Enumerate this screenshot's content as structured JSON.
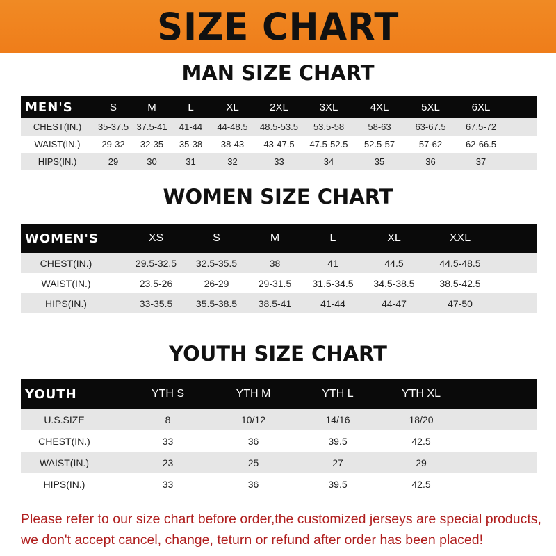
{
  "banner": {
    "title": "SIZE CHART",
    "color": "#ef821f"
  },
  "men": {
    "title": "MAN SIZE CHART",
    "header": [
      "MEN'S",
      "S",
      "M",
      "L",
      "XL",
      "2XL",
      "3XL",
      "4XL",
      "5XL",
      "6XL"
    ],
    "rows": [
      [
        "CHEST(IN.)",
        "35-37.5",
        "37.5-41",
        "41-44",
        "44-48.5",
        "48.5-53.5",
        "53.5-58",
        "58-63",
        "63-67.5",
        "67.5-72"
      ],
      [
        "WAIST(IN.)",
        "29-32",
        "32-35",
        "35-38",
        "38-43",
        "43-47.5",
        "47.5-52.5",
        "52.5-57",
        "57-62",
        "62-66.5"
      ],
      [
        "HIPS(IN.)",
        "29",
        "30",
        "31",
        "32",
        "33",
        "34",
        "35",
        "36",
        "37"
      ]
    ]
  },
  "women": {
    "title": "WOMEN SIZE CHART",
    "header": [
      "WOMEN'S",
      "XS",
      "S",
      "M",
      "L",
      "XL",
      "XXL"
    ],
    "rows": [
      [
        "CHEST(IN.)",
        "29.5-32.5",
        "32.5-35.5",
        "38",
        "41",
        "44.5",
        "44.5-48.5"
      ],
      [
        "WAIST(IN.)",
        "23.5-26",
        "26-29",
        "29-31.5",
        "31.5-34.5",
        "34.5-38.5",
        "38.5-42.5"
      ],
      [
        "HIPS(IN.)",
        "33-35.5",
        "35.5-38.5",
        "38.5-41",
        "41-44",
        "44-47",
        "47-50"
      ]
    ]
  },
  "youth": {
    "title": "YOUTH SIZE CHART",
    "header": [
      "YOUTH",
      "YTH S",
      "YTH M",
      "YTH L",
      "YTH XL"
    ],
    "rows": [
      [
        "U.S.SIZE",
        "8",
        "10/12",
        "14/16",
        "18/20"
      ],
      [
        "CHEST(IN.)",
        "33",
        "36",
        "39.5",
        "42.5"
      ],
      [
        "WAIST(IN.)",
        "23",
        "25",
        "27",
        "29"
      ],
      [
        "HIPS(IN.)",
        "33",
        "36",
        "39.5",
        "42.5"
      ]
    ]
  },
  "notice": {
    "line1": "Please refer to our size chart before order,the customized jerseys are special products,",
    "line2": "we don't accept cancel, change, teturn or refund after order has been placed!",
    "color": "#b01e1e"
  }
}
